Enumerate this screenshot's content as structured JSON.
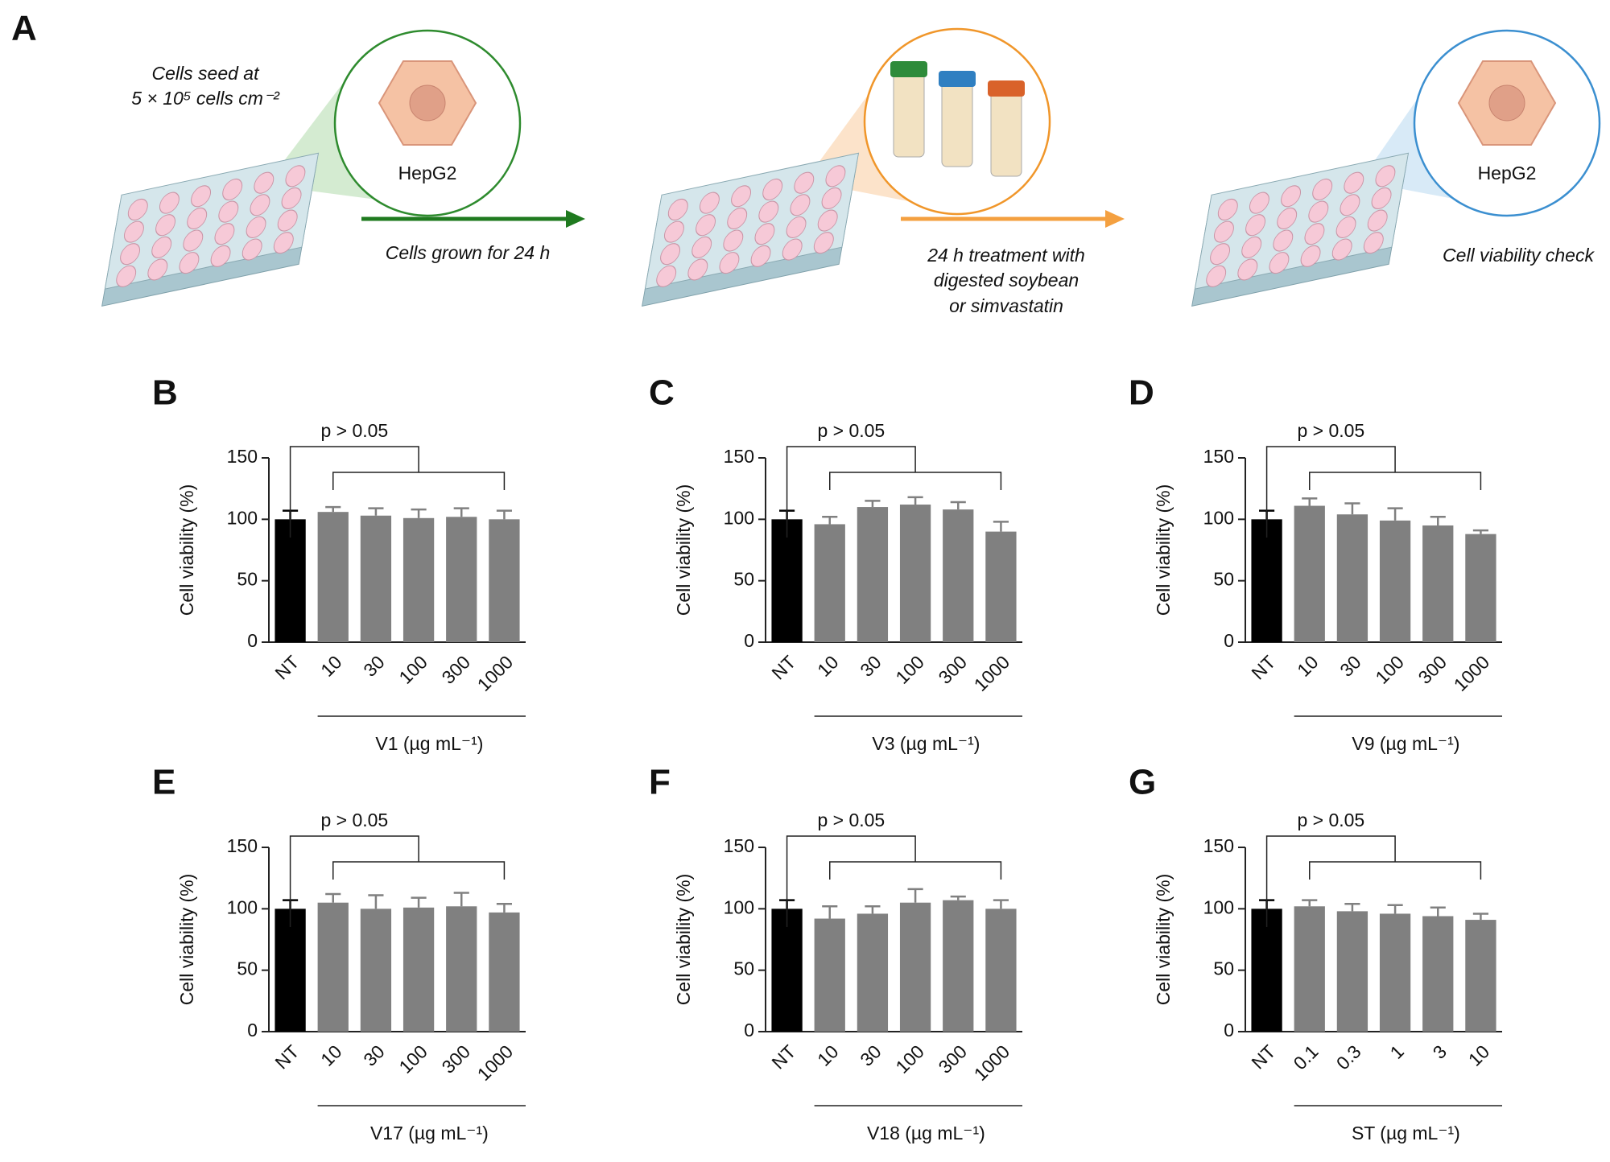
{
  "schematic": {
    "letter": "A",
    "seed_line1": "Cells seed at",
    "seed_line2": "5 × 10⁵ cells cm⁻²",
    "cell1": "HepG2",
    "step1": "Cells grown for 24 h",
    "treat_line1": "24 h treatment with",
    "treat_line2": "digested soybean",
    "treat_line3": "or simvastatin",
    "cell2": "HepG2",
    "step2": "Cell viability check"
  },
  "chart_data": [
    {
      "type": "bar",
      "letter": "B",
      "ylabel": "Cell viability (%)",
      "xlabel": "V1 (µg mL⁻¹)",
      "annotation": "p > 0.05",
      "categories": [
        "NT",
        "10",
        "30",
        "100",
        "300",
        "1000"
      ],
      "values": [
        100,
        106,
        103,
        101,
        102,
        100
      ],
      "errors": [
        7,
        4,
        6,
        7,
        7,
        7
      ],
      "colors": [
        "#000000",
        "#808080",
        "#808080",
        "#808080",
        "#808080",
        "#808080"
      ],
      "ylim": [
        0,
        150
      ],
      "yticks": [
        0,
        50,
        100,
        150
      ]
    },
    {
      "type": "bar",
      "letter": "C",
      "ylabel": "Cell viability (%)",
      "xlabel": "V3 (µg mL⁻¹)",
      "annotation": "p > 0.05",
      "categories": [
        "NT",
        "10",
        "30",
        "100",
        "300",
        "1000"
      ],
      "values": [
        100,
        96,
        110,
        112,
        108,
        90
      ],
      "errors": [
        7,
        6,
        5,
        6,
        6,
        8
      ],
      "colors": [
        "#000000",
        "#808080",
        "#808080",
        "#808080",
        "#808080",
        "#808080"
      ],
      "ylim": [
        0,
        150
      ],
      "yticks": [
        0,
        50,
        100,
        150
      ]
    },
    {
      "type": "bar",
      "letter": "D",
      "ylabel": "Cell viability (%)",
      "xlabel": "V9 (µg mL⁻¹)",
      "annotation": "p > 0.05",
      "categories": [
        "NT",
        "10",
        "30",
        "100",
        "300",
        "1000"
      ],
      "values": [
        100,
        111,
        104,
        99,
        95,
        88
      ],
      "errors": [
        7,
        6,
        9,
        10,
        7,
        3
      ],
      "colors": [
        "#000000",
        "#808080",
        "#808080",
        "#808080",
        "#808080",
        "#808080"
      ],
      "ylim": [
        0,
        150
      ],
      "yticks": [
        0,
        50,
        100,
        150
      ]
    },
    {
      "type": "bar",
      "letter": "E",
      "ylabel": "Cell viability (%)",
      "xlabel": "V17 (µg mL⁻¹)",
      "annotation": "p > 0.05",
      "categories": [
        "NT",
        "10",
        "30",
        "100",
        "300",
        "1000"
      ],
      "values": [
        100,
        105,
        100,
        101,
        102,
        97
      ],
      "errors": [
        7,
        7,
        11,
        8,
        11,
        7
      ],
      "colors": [
        "#000000",
        "#808080",
        "#808080",
        "#808080",
        "#808080",
        "#808080"
      ],
      "ylim": [
        0,
        150
      ],
      "yticks": [
        0,
        50,
        100,
        150
      ]
    },
    {
      "type": "bar",
      "letter": "F",
      "ylabel": "Cell viability (%)",
      "xlabel": "V18 (µg mL⁻¹)",
      "annotation": "p > 0.05",
      "categories": [
        "NT",
        "10",
        "30",
        "100",
        "300",
        "1000"
      ],
      "values": [
        100,
        92,
        96,
        105,
        107,
        100
      ],
      "errors": [
        7,
        10,
        6,
        11,
        3,
        7
      ],
      "colors": [
        "#000000",
        "#808080",
        "#808080",
        "#808080",
        "#808080",
        "#808080"
      ],
      "ylim": [
        0,
        150
      ],
      "yticks": [
        0,
        50,
        100,
        150
      ]
    },
    {
      "type": "bar",
      "letter": "G",
      "ylabel": "Cell viability (%)",
      "xlabel": "ST (µg mL⁻¹)",
      "annotation": "p > 0.05",
      "categories": [
        "NT",
        "0.1",
        "0.3",
        "1",
        "3",
        "10"
      ],
      "values": [
        100,
        102,
        98,
        96,
        94,
        91
      ],
      "errors": [
        7,
        5,
        6,
        7,
        7,
        5
      ],
      "colors": [
        "#000000",
        "#808080",
        "#808080",
        "#808080",
        "#808080",
        "#808080"
      ],
      "ylim": [
        0,
        150
      ],
      "yticks": [
        0,
        50,
        100,
        150
      ]
    }
  ]
}
